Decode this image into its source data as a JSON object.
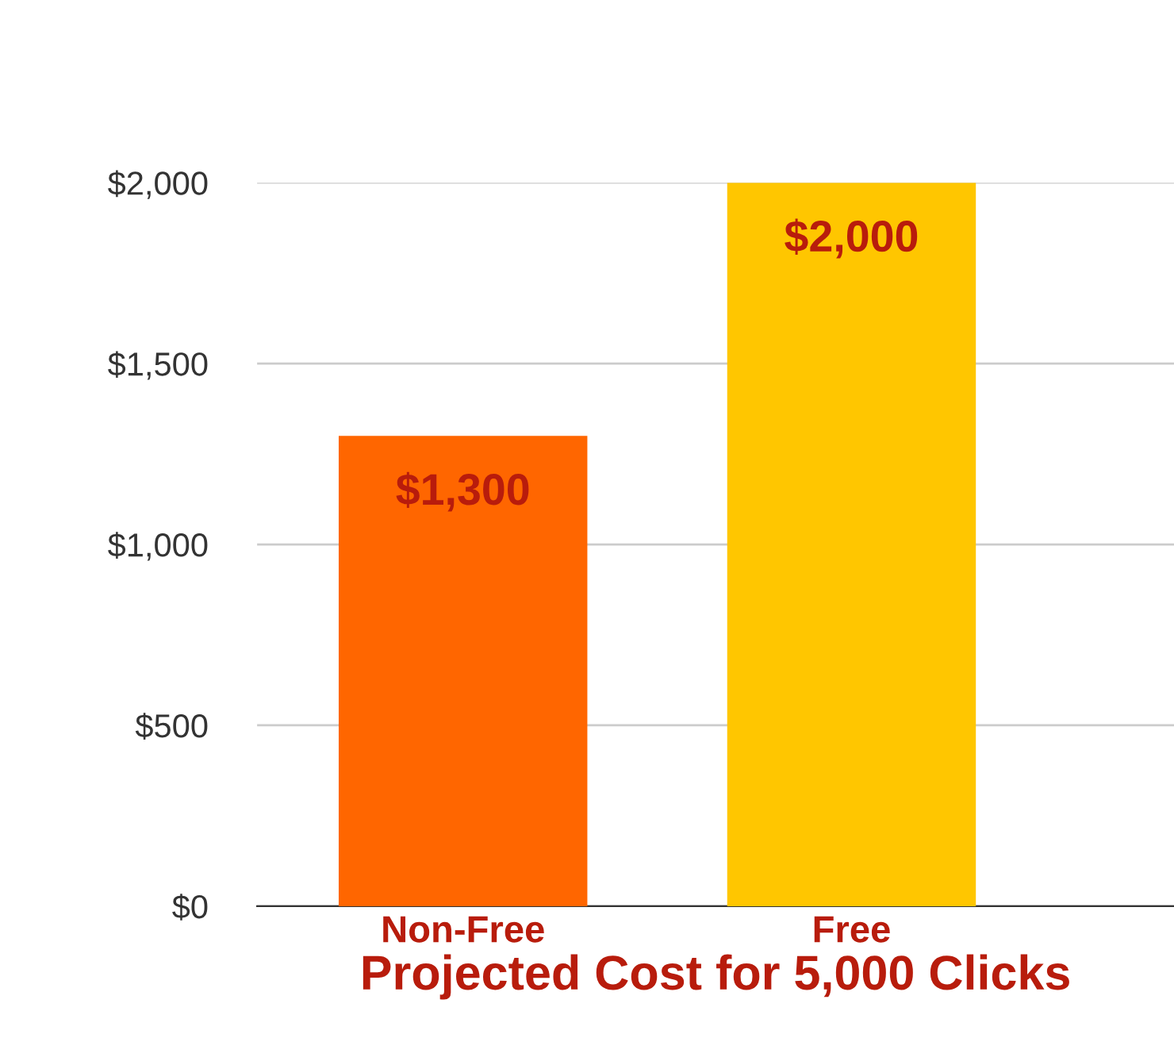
{
  "chart_data": {
    "type": "bar",
    "xlabel": "Projected Cost for 5,000 Clicks",
    "categories": [
      "Non-Free",
      "Free"
    ],
    "values": [
      1300,
      2000
    ],
    "colors": [
      "#ff6600",
      "#ffc600"
    ],
    "value_labels": [
      "$1,300",
      "$2,000"
    ],
    "ylim": [
      0,
      2000
    ],
    "yticks": [
      {
        "value": 0,
        "label": "$0"
      },
      {
        "value": 500,
        "label": "$500"
      },
      {
        "value": 1000,
        "label": "$1,000"
      },
      {
        "value": 1500,
        "label": "$1,500"
      },
      {
        "value": 2000,
        "label": "$2,000"
      }
    ],
    "grid": "y"
  }
}
